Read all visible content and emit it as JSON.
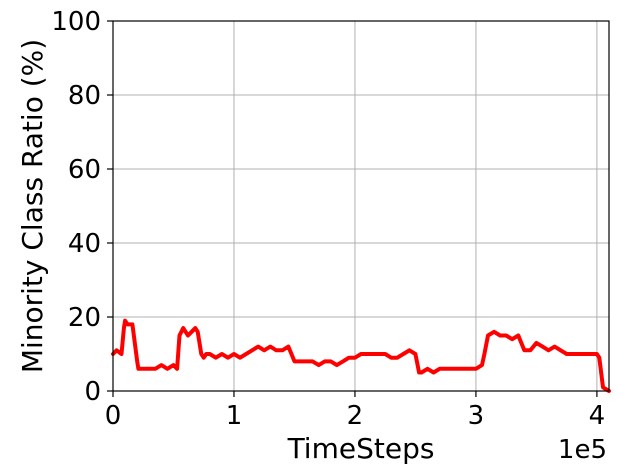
{
  "chart_data": {
    "type": "line",
    "xlabel": "TimeSteps",
    "ylabel": "Minority Class Ratio (%)",
    "x_offset_label": "1e5",
    "xlim": [
      0,
      4.1
    ],
    "ylim": [
      0,
      100
    ],
    "x_unit_multiplier": 100000,
    "xticks": [
      0,
      1,
      2,
      3,
      4
    ],
    "xtick_labels": [
      "0",
      "1",
      "2",
      "3",
      "4"
    ],
    "yticks": [
      0,
      20,
      40,
      60,
      80,
      100
    ],
    "ytick_labels": [
      "0",
      "20",
      "40",
      "60",
      "80",
      "100"
    ],
    "grid": true,
    "series": [
      {
        "color": "#ff0000",
        "x": [
          0.0,
          0.03,
          0.07,
          0.09,
          0.1,
          0.12,
          0.14,
          0.16,
          0.2,
          0.21,
          0.23,
          0.27,
          0.3,
          0.35,
          0.4,
          0.45,
          0.5,
          0.53,
          0.55,
          0.58,
          0.62,
          0.65,
          0.68,
          0.7,
          0.73,
          0.75,
          0.77,
          0.8,
          0.85,
          0.9,
          0.95,
          1.0,
          1.05,
          1.1,
          1.15,
          1.2,
          1.25,
          1.3,
          1.35,
          1.4,
          1.45,
          1.5,
          1.52,
          1.55,
          1.6,
          1.65,
          1.7,
          1.75,
          1.8,
          1.85,
          1.9,
          1.95,
          2.0,
          2.05,
          2.1,
          2.15,
          2.2,
          2.25,
          2.3,
          2.35,
          2.4,
          2.45,
          2.5,
          2.53,
          2.55,
          2.6,
          2.65,
          2.7,
          2.75,
          2.8,
          2.85,
          2.9,
          2.95,
          3.0,
          3.05,
          3.07,
          3.1,
          3.15,
          3.2,
          3.25,
          3.3,
          3.35,
          3.4,
          3.45,
          3.5,
          3.55,
          3.6,
          3.65,
          3.7,
          3.75,
          3.8,
          3.85,
          3.9,
          3.95,
          4.0,
          4.02,
          4.05,
          4.1
        ],
        "y": [
          10,
          11,
          10,
          17,
          19,
          18,
          18,
          18,
          8,
          6,
          6,
          6,
          6,
          6,
          7,
          6,
          7,
          6,
          15,
          17,
          15,
          16,
          17,
          16,
          10,
          9,
          10,
          10,
          9,
          10,
          9,
          10,
          9,
          10,
          11,
          12,
          11,
          12,
          11,
          11,
          12,
          8,
          8,
          8,
          8,
          8,
          7,
          8,
          8,
          7,
          8,
          9,
          9,
          10,
          10,
          10,
          10,
          10,
          9,
          9,
          10,
          11,
          10,
          5,
          5,
          6,
          5,
          6,
          6,
          6,
          6,
          6,
          6,
          6,
          7,
          10,
          15,
          16,
          15,
          15,
          14,
          15,
          11,
          11,
          13,
          12,
          11,
          12,
          11,
          10,
          10,
          10,
          10,
          10,
          10,
          9,
          1,
          0
        ]
      }
    ]
  }
}
